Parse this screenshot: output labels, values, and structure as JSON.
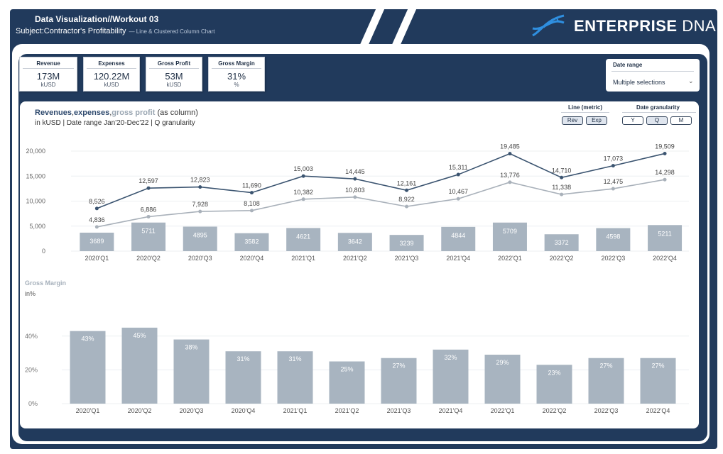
{
  "header": {
    "title": "Data Visualization//Workout 03",
    "subject": "Subject:Contractor's Profitability",
    "subject_note": "— Line & Clustered Column Chart",
    "brand_bold": "ENTERPRISE",
    "brand_thin": "DNA"
  },
  "kpis": [
    {
      "label": "Revenue",
      "value": "173M",
      "unit": "kUSD"
    },
    {
      "label": "Expenses",
      "value": "120.22M",
      "unit": "kUSD"
    },
    {
      "label": "Gross Profit",
      "value": "53M",
      "unit": "kUSD"
    },
    {
      "label": "Gross Margin",
      "value": "31%",
      "unit": "%"
    }
  ],
  "date_range": {
    "label": "Date range",
    "value": "Multiple selections"
  },
  "controls": {
    "line_metric_label": "Line (metric)",
    "line_metric_options": [
      "Rev",
      "Exp"
    ],
    "granularity_label": "Date granularity",
    "granularity_options": [
      "Y",
      "Q",
      "M"
    ]
  },
  "colors": {
    "navy": "#213a5c",
    "revenue_line": "#3b5470",
    "expenses_line": "#a9b1ba",
    "bar": "#a8b4c0"
  },
  "chart_data": [
    {
      "type": "bar+line",
      "title_parts": [
        "Revenues",
        ",",
        "expenses",
        ",",
        "gross profit",
        " (as column)"
      ],
      "subtitle": "in kUSD | Date range Jan'20-Dec'22 | Q granularity",
      "categories": [
        "2020'Q1",
        "2020'Q2",
        "2020'Q3",
        "2020'Q4",
        "2021'Q1",
        "2021'Q2",
        "2021'Q3",
        "2021'Q4",
        "2022'Q1",
        "2022'Q2",
        "2022'Q3",
        "2022'Q4"
      ],
      "y_ticks": [
        "0",
        "5,000",
        "10,000",
        "15,000",
        "20,000"
      ],
      "ylim": [
        0,
        20000
      ],
      "series": [
        {
          "name": "Revenues",
          "type": "line",
          "values": [
            8526,
            12597,
            12823,
            11690,
            15003,
            14445,
            12161,
            15311,
            19485,
            14710,
            17073,
            19509
          ],
          "labels": [
            "8,526",
            "12,597",
            "12,823",
            "11,690",
            "15,003",
            "14,445",
            "12,161",
            "15,311",
            "19,485",
            "14,710",
            "17,073",
            "19,509"
          ]
        },
        {
          "name": "Expenses",
          "type": "line",
          "values": [
            4836,
            6886,
            7928,
            8108,
            10382,
            10803,
            8922,
            10467,
            13776,
            11338,
            12475,
            14298
          ],
          "labels": [
            "4,836",
            "6,886",
            "7,928",
            "8,108",
            "10,382",
            "10,803",
            "8,922",
            "10,467",
            "13,776",
            "11,338",
            "12,475",
            "14,298"
          ]
        },
        {
          "name": "Gross profit",
          "type": "bar",
          "values": [
            3689,
            5711,
            4895,
            3582,
            4621,
            3642,
            3239,
            4844,
            5709,
            3372,
            4598,
            5211
          ],
          "labels": [
            "3689",
            "5711",
            "4895",
            "3582",
            "4621",
            "3642",
            "3239",
            "4844",
            "5709",
            "3372",
            "4598",
            "5211"
          ]
        }
      ]
    },
    {
      "type": "bar",
      "title": "Gross Margin",
      "ylabel": "in%",
      "categories": [
        "2020'Q1",
        "2020'Q2",
        "2020'Q3",
        "2020'Q4",
        "2021'Q1",
        "2021'Q2",
        "2021'Q3",
        "2021'Q4",
        "2022'Q1",
        "2022'Q2",
        "2022'Q3",
        "2022'Q4"
      ],
      "y_ticks": [
        "0%",
        "20%",
        "40%"
      ],
      "ylim": [
        0,
        50
      ],
      "values": [
        43,
        45,
        38,
        31,
        31,
        25,
        27,
        32,
        29,
        23,
        27,
        27
      ],
      "labels": [
        "43%",
        "45%",
        "38%",
        "31%",
        "31%",
        "25%",
        "27%",
        "32%",
        "29%",
        "23%",
        "27%",
        "27%"
      ]
    }
  ]
}
